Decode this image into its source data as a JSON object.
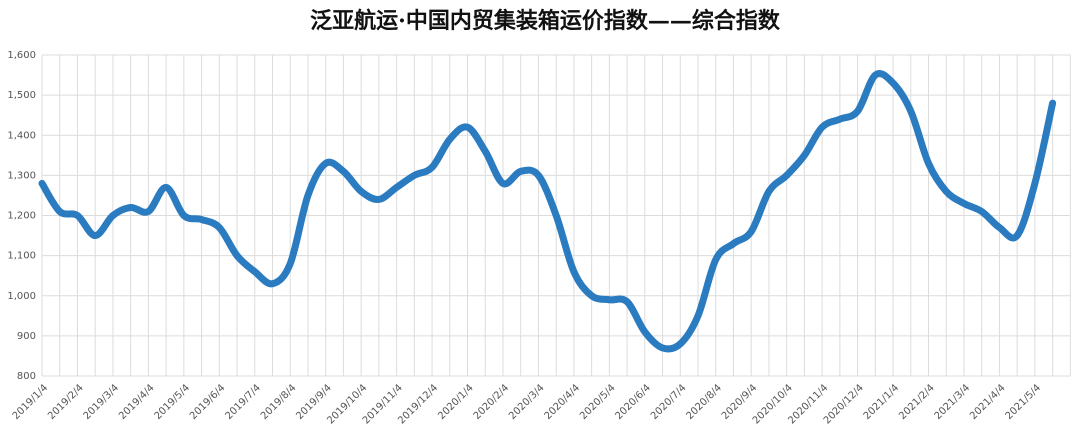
{
  "chart_data": {
    "type": "line",
    "title": "泛亚航运·中国内贸集装箱运价指数——综合指数",
    "categories": [
      "2019/1/4",
      null,
      "2019/2/4",
      null,
      "2019/3/4",
      null,
      "2019/4/4",
      null,
      "2019/5/4",
      null,
      "2019/6/4",
      null,
      "2019/7/4",
      null,
      "2019/8/4",
      null,
      "2019/9/4",
      null,
      "2019/10/4",
      null,
      "2019/11/4",
      null,
      "2019/12/4",
      null,
      "2020/1/4",
      null,
      "2020/2/4",
      null,
      "2020/3/4",
      null,
      "2020/4/4",
      null,
      "2020/5/4",
      null,
      "2020/6/4",
      null,
      "2020/7/4",
      null,
      "2020/8/4",
      null,
      "2020/9/4",
      null,
      "2020/10/4",
      null,
      "2020/11/4",
      null,
      "2020/12/4",
      null,
      "2021/1/4",
      null,
      "2021/2/4",
      null,
      "2021/3/4",
      null,
      "2021/4/4",
      null,
      "2021/5/4",
      null
    ],
    "series": [
      {
        "color": "#2a7bc0",
        "values": [
          1280,
          1210,
          1200,
          1150,
          1200,
          1220,
          1210,
          1270,
          1200,
          1190,
          1170,
          1100,
          1060,
          1030,
          1080,
          1250,
          1330,
          1310,
          1260,
          1240,
          1270,
          1300,
          1320,
          1390,
          1420,
          1360,
          1280,
          1310,
          1300,
          1200,
          1060,
          1000,
          990,
          985,
          910,
          870,
          880,
          950,
          1090,
          1130,
          1160,
          1260,
          1300,
          1350,
          1420,
          1440,
          1460,
          1550,
          1530,
          1460,
          1330,
          1260,
          1230,
          1210,
          1170,
          1150,
          1280,
          1480
        ]
      }
    ],
    "ylim": [
      800,
      1600
    ],
    "yticks": [
      800,
      900,
      {
        "value": 1000,
        "label": "1,000"
      },
      {
        "value": 1100,
        "label": "1,100"
      },
      {
        "value": 1200,
        "label": "1,200"
      },
      {
        "value": 1300,
        "label": "1,300"
      },
      {
        "value": 1400,
        "label": "1,400"
      },
      {
        "value": 1500,
        "label": "1,500"
      },
      {
        "value": 1600,
        "label": "1,600"
      }
    ],
    "grid": true
  }
}
